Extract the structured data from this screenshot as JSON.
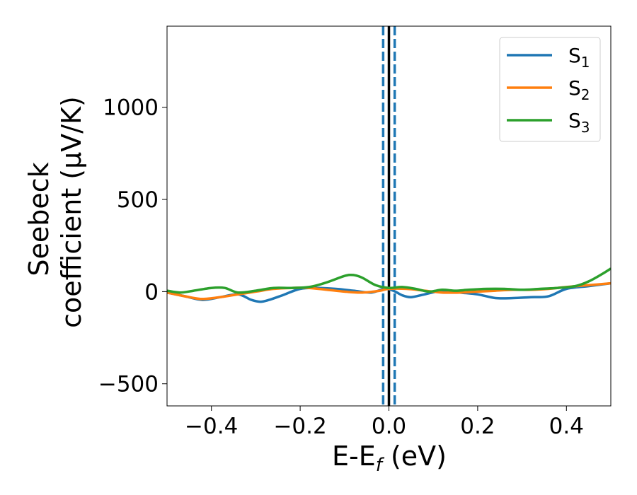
{
  "chart_data": {
    "type": "line",
    "title": "",
    "xlabel": "E-E",
    "xlabel_sub": "f",
    "xlabel_unit": " (eV)",
    "ylabel_line1": "Seebeck",
    "ylabel_line2": "coefficient  (μV/K)",
    "xlim": [
      -0.5,
      0.5
    ],
    "ylim": [
      -620,
      1440
    ],
    "x_ticks": [
      -0.4,
      -0.2,
      0.0,
      0.2,
      0.4
    ],
    "x_tick_labels": [
      "−0.4",
      "−0.2",
      "0.0",
      "0.2",
      "0.4"
    ],
    "y_ticks": [
      -500,
      0,
      500,
      1000
    ],
    "y_tick_labels": [
      "−500",
      "0",
      "500",
      "1000"
    ],
    "grid": false,
    "legend_position": "top-right",
    "vlines": [
      {
        "x": 0.0,
        "style": "solid",
        "color": "#000000"
      },
      {
        "x": -0.013,
        "style": "dashed",
        "color": "#1f77b4"
      },
      {
        "x": 0.013,
        "style": "dashed",
        "color": "#1f77b4"
      }
    ],
    "series": [
      {
        "name": "S",
        "sub": "1",
        "color": "#1f77b4",
        "x": [
          -0.5,
          -0.46,
          -0.42,
          -0.38,
          -0.34,
          -0.31,
          -0.29,
          -0.27,
          -0.24,
          -0.2,
          -0.16,
          -0.12,
          -0.08,
          -0.04,
          -0.01,
          0.01,
          0.03,
          0.05,
          0.08,
          0.12,
          0.16,
          0.2,
          0.24,
          0.28,
          0.32,
          0.36,
          0.4,
          0.45,
          0.5
        ],
        "y": [
          -5,
          -25,
          -45,
          -30,
          -15,
          -45,
          -55,
          -45,
          -20,
          15,
          20,
          15,
          5,
          -5,
          15,
          5,
          -20,
          -30,
          -15,
          5,
          -5,
          -15,
          -35,
          -35,
          -30,
          -25,
          15,
          30,
          45
        ]
      },
      {
        "name": "S",
        "sub": "2",
        "color": "#ff7f0e",
        "x": [
          -0.5,
          -0.45,
          -0.42,
          -0.38,
          -0.34,
          -0.3,
          -0.26,
          -0.22,
          -0.18,
          -0.14,
          -0.1,
          -0.06,
          -0.02,
          0.0,
          0.04,
          0.08,
          0.12,
          0.16,
          0.2,
          0.24,
          0.28,
          0.32,
          0.36,
          0.4,
          0.45,
          0.5
        ],
        "y": [
          -5,
          -30,
          -40,
          -30,
          -15,
          0,
          15,
          20,
          20,
          10,
          0,
          -5,
          5,
          15,
          15,
          5,
          -5,
          -5,
          0,
          5,
          10,
          10,
          15,
          25,
          35,
          45
        ]
      },
      {
        "name": "S",
        "sub": "3",
        "color": "#2ca02c",
        "x": [
          -0.5,
          -0.47,
          -0.44,
          -0.4,
          -0.37,
          -0.34,
          -0.3,
          -0.26,
          -0.22,
          -0.18,
          -0.14,
          -0.1,
          -0.08,
          -0.06,
          -0.03,
          0.0,
          0.03,
          0.06,
          0.09,
          0.12,
          0.15,
          0.18,
          0.22,
          0.26,
          0.3,
          0.34,
          0.38,
          0.42,
          0.45,
          0.48,
          0.5
        ],
        "y": [
          5,
          -5,
          5,
          20,
          20,
          -5,
          5,
          20,
          20,
          25,
          50,
          85,
          90,
          75,
          35,
          20,
          25,
          15,
          0,
          10,
          5,
          10,
          15,
          15,
          10,
          15,
          20,
          30,
          55,
          95,
          125
        ]
      }
    ]
  }
}
